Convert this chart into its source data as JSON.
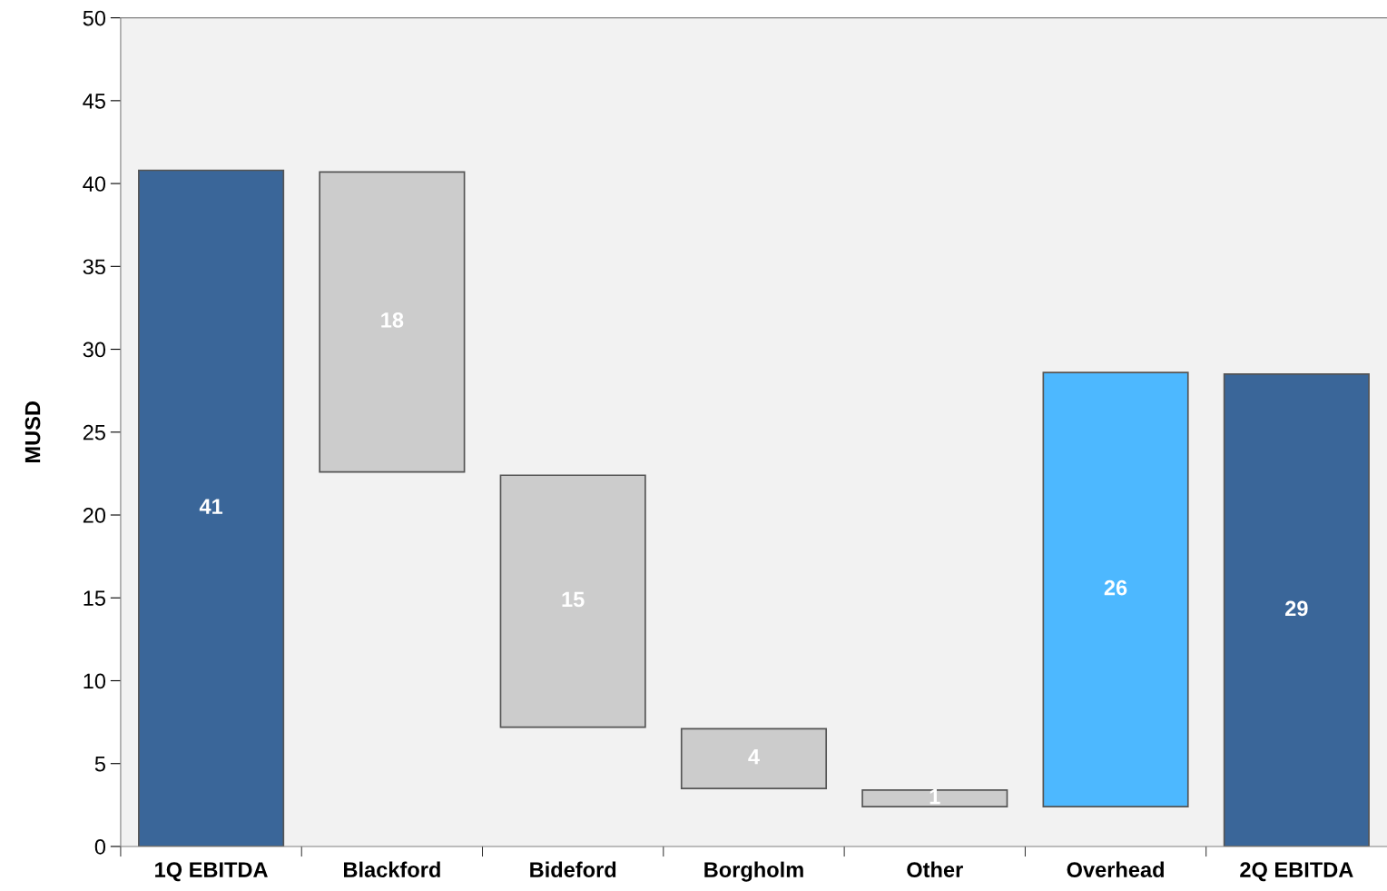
{
  "chart_data": {
    "type": "bar",
    "ylabel": "MUSD",
    "categories": [
      "1Q EBITDA",
      "Blackford",
      "Bideford",
      "Borgholm",
      "Other",
      "Overhead",
      "2Q EBITDA"
    ],
    "base": [
      0,
      22.6,
      7.2,
      3.5,
      2.4,
      2.4,
      0
    ],
    "values": [
      40.8,
      18.1,
      15.2,
      3.6,
      1.0,
      26.2,
      28.5
    ],
    "colors": [
      "#3a6699",
      "#cccccc",
      "#cccccc",
      "#cccccc",
      "#cccccc",
      "#4db8ff",
      "#3a6699"
    ],
    "value_labels": [
      "41",
      "18",
      "15",
      "4",
      "1",
      "26",
      "29"
    ],
    "ylim": [
      0,
      50
    ],
    "yticks": [
      0,
      5,
      10,
      15,
      20,
      25,
      30,
      35,
      40,
      45,
      50
    ],
    "grid": false
  }
}
